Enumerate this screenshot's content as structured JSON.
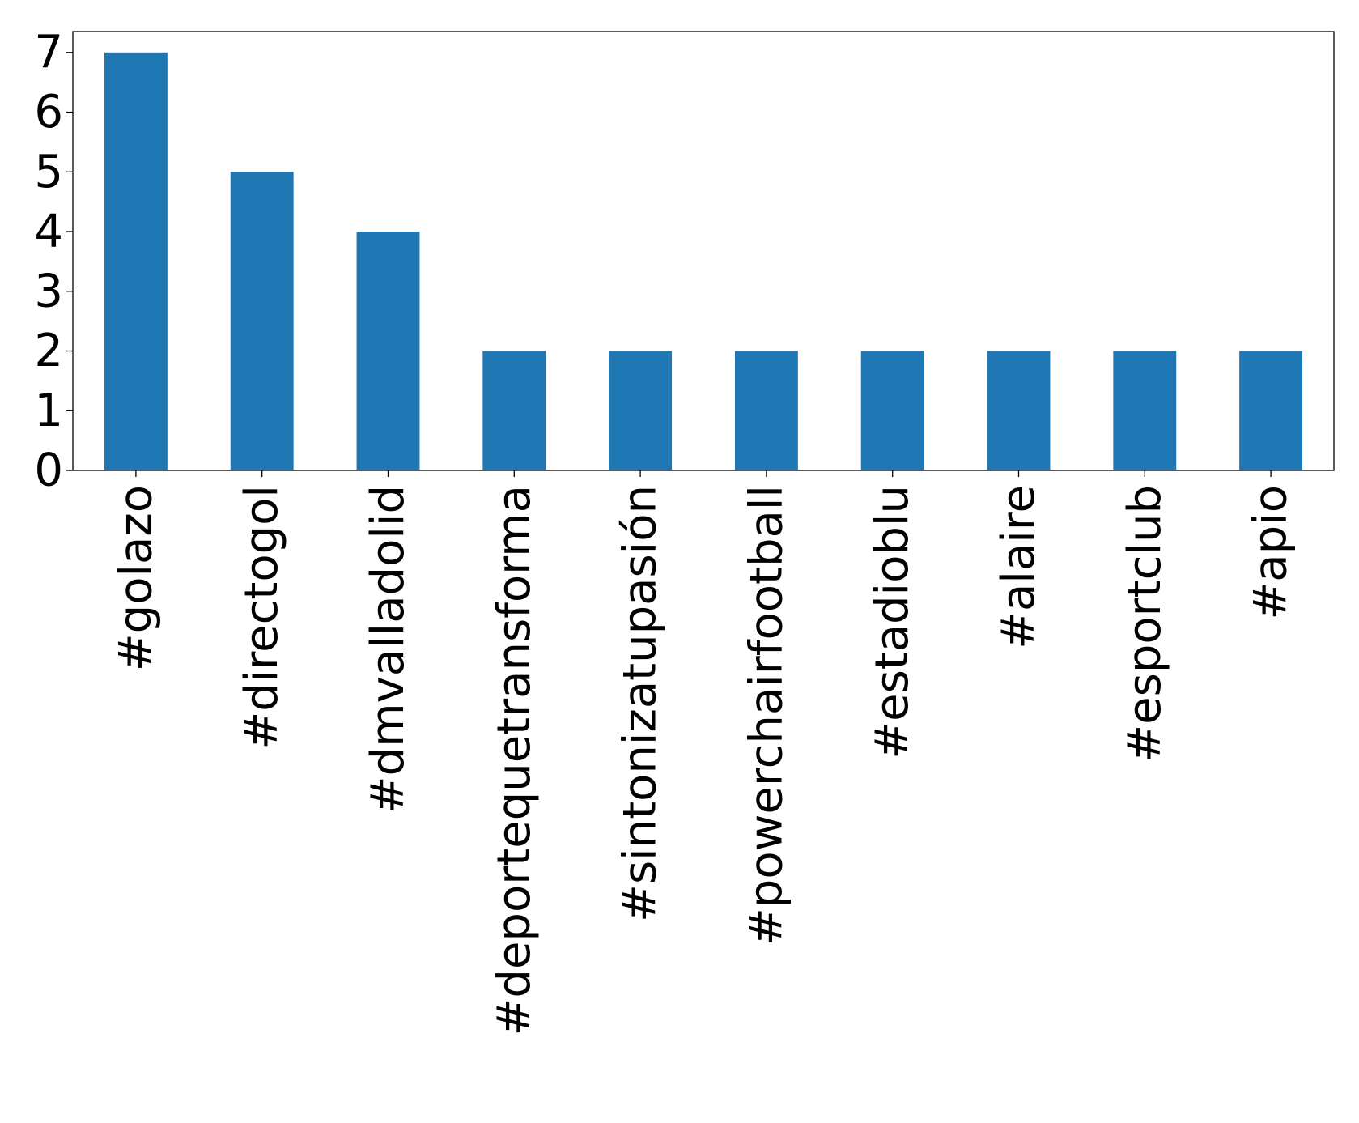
{
  "chart_data": {
    "type": "bar",
    "title": "",
    "xlabel": "",
    "ylabel": "",
    "categories": [
      "#golazo",
      "#directogol",
      "#dmvalladolid",
      "#deportequetransforma",
      "#sintonizatupasión",
      "#powerchairfootball",
      "#estadioblu",
      "#alaire",
      "#esportclub",
      "#apio"
    ],
    "values": [
      7,
      5,
      4,
      2,
      2,
      2,
      2,
      2,
      2,
      2
    ],
    "ylim": [
      0,
      7.35
    ],
    "yticks": [
      "0",
      "1",
      "2",
      "3",
      "4",
      "5",
      "6",
      "7"
    ],
    "grid": false,
    "legend": "none",
    "bar_color": "#1f77b4"
  }
}
